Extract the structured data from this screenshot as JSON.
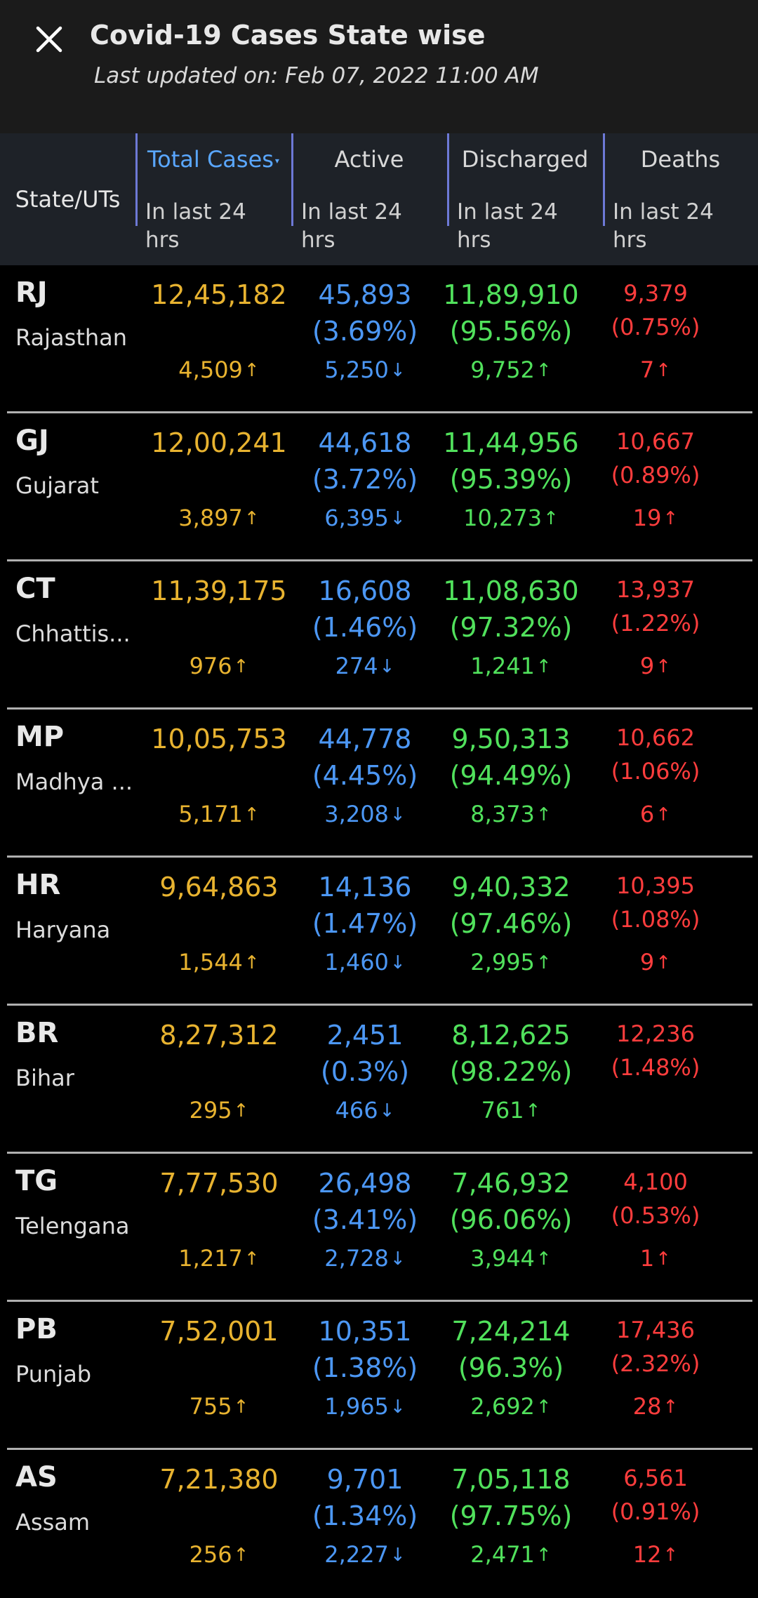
{
  "header": {
    "title": "Covid-19 Cases State wise",
    "subtitle": "Last updated on: Feb 07, 2022 11:00 AM"
  },
  "columns": {
    "state": "State/UTs",
    "total": "Total Cases",
    "active": "Active",
    "discharged": "Discharged",
    "deaths": "Deaths",
    "sub": "In last 24 hrs"
  },
  "icons": {
    "close": "close-icon",
    "up": "↑",
    "down": "↓"
  },
  "colors": {
    "total": "#e8b330",
    "active": "#4c97f4",
    "discharged": "#51e15c",
    "deaths": "#ff3d3d",
    "accent": "#5aa7ff"
  },
  "rows": [
    {
      "code": "RJ",
      "name": "Rajasthan",
      "total": "12,45,182",
      "total_d": "4,509",
      "active": "45,893",
      "active_pct": "(3.69%)",
      "active_d": "5,250",
      "dis": "11,89,910",
      "dis_pct": "(95.56%)",
      "dis_d": "9,752",
      "deaths": "9,379",
      "deaths_pct": "(0.75%)",
      "deaths_d": "7"
    },
    {
      "code": "GJ",
      "name": "Gujarat",
      "total": "12,00,241",
      "total_d": "3,897",
      "active": "44,618",
      "active_pct": "(3.72%)",
      "active_d": "6,395",
      "dis": "11,44,956",
      "dis_pct": "(95.39%)",
      "dis_d": "10,273",
      "deaths": "10,667",
      "deaths_pct": "(0.89%)",
      "deaths_d": "19"
    },
    {
      "code": "CT",
      "name": "Chhattis...",
      "total": "11,39,175",
      "total_d": "976",
      "active": "16,608",
      "active_pct": "(1.46%)",
      "active_d": "274",
      "dis": "11,08,630",
      "dis_pct": "(97.32%)",
      "dis_d": "1,241",
      "deaths": "13,937",
      "deaths_pct": "(1.22%)",
      "deaths_d": "9"
    },
    {
      "code": "MP",
      "name": "Madhya ...",
      "total": "10,05,753",
      "total_d": "5,171",
      "active": "44,778",
      "active_pct": "(4.45%)",
      "active_d": "3,208",
      "dis": "9,50,313",
      "dis_pct": "(94.49%)",
      "dis_d": "8,373",
      "deaths": "10,662",
      "deaths_pct": "(1.06%)",
      "deaths_d": "6"
    },
    {
      "code": "HR",
      "name": "Haryana",
      "total": "9,64,863",
      "total_d": "1,544",
      "active": "14,136",
      "active_pct": "(1.47%)",
      "active_d": "1,460",
      "dis": "9,40,332",
      "dis_pct": "(97.46%)",
      "dis_d": "2,995",
      "deaths": "10,395",
      "deaths_pct": "(1.08%)",
      "deaths_d": "9"
    },
    {
      "code": "BR",
      "name": "Bihar",
      "total": "8,27,312",
      "total_d": "295",
      "active": "2,451",
      "active_pct": "(0.3%)",
      "active_d": "466",
      "dis": "8,12,625",
      "dis_pct": "(98.22%)",
      "dis_d": "761",
      "deaths": "12,236",
      "deaths_pct": "(1.48%)",
      "deaths_d": ""
    },
    {
      "code": "TG",
      "name": "Telengana",
      "total": "7,77,530",
      "total_d": "1,217",
      "active": "26,498",
      "active_pct": "(3.41%)",
      "active_d": "2,728",
      "dis": "7,46,932",
      "dis_pct": "(96.06%)",
      "dis_d": "3,944",
      "deaths": "4,100",
      "deaths_pct": "(0.53%)",
      "deaths_d": "1"
    },
    {
      "code": "PB",
      "name": "Punjab",
      "total": "7,52,001",
      "total_d": "755",
      "active": "10,351",
      "active_pct": "(1.38%)",
      "active_d": "1,965",
      "dis": "7,24,214",
      "dis_pct": "(96.3%)",
      "dis_d": "2,692",
      "deaths": "17,436",
      "deaths_pct": "(2.32%)",
      "deaths_d": "28"
    },
    {
      "code": "AS",
      "name": "Assam",
      "total": "7,21,380",
      "total_d": "256",
      "active": "9,701",
      "active_pct": "(1.34%)",
      "active_d": "2,227",
      "dis": "7,05,118",
      "dis_pct": "(97.75%)",
      "dis_d": "2,471",
      "deaths": "6,561",
      "deaths_pct": "(0.91%)",
      "deaths_d": "12"
    }
  ]
}
